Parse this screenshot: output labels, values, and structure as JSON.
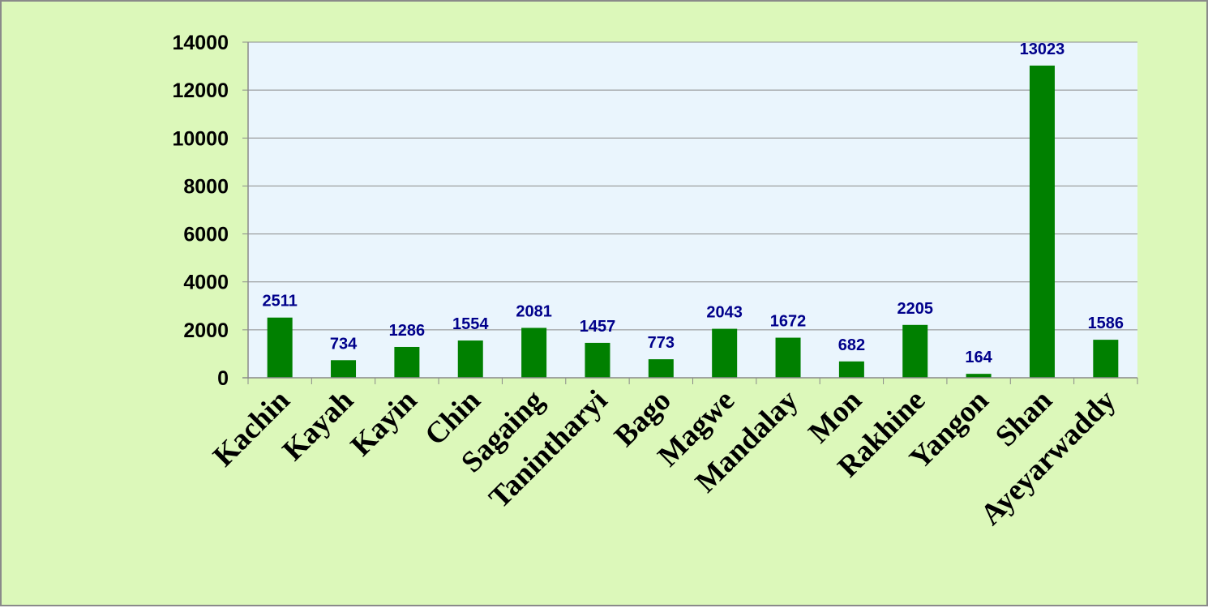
{
  "chart_data": {
    "type": "bar",
    "categories": [
      "Kachin",
      "Kayah",
      "Kayin",
      "Chin",
      "Sagaing",
      "Tanintharyi",
      "Bago",
      "Magwe",
      "Mandalay",
      "Mon",
      "Rakhine",
      "Yangon",
      "Shan",
      "Ayeyarwaddy"
    ],
    "values": [
      2511,
      734,
      1286,
      1554,
      2081,
      1457,
      773,
      2043,
      1672,
      682,
      2205,
      164,
      13023,
      1586
    ],
    "data_labels": [
      "2511",
      "734",
      "1286",
      "1554",
      "2081",
      "1457",
      "773",
      "2043",
      "1672",
      "682",
      "2205",
      "164",
      "13023",
      "1586"
    ],
    "yticks": [
      "0",
      "2000",
      "4000",
      "6000",
      "8000",
      "10000",
      "12000",
      "14000"
    ],
    "ylim": [
      0,
      14000
    ],
    "title": "",
    "xlabel": "",
    "ylabel": "",
    "grid": true,
    "legend": false,
    "colors": {
      "bar": "#008000",
      "data_label": "#00008b",
      "plot_background": "#eaf5fd",
      "chart_background": "#dcf8ba",
      "gridline": "#8a8a8a"
    }
  }
}
